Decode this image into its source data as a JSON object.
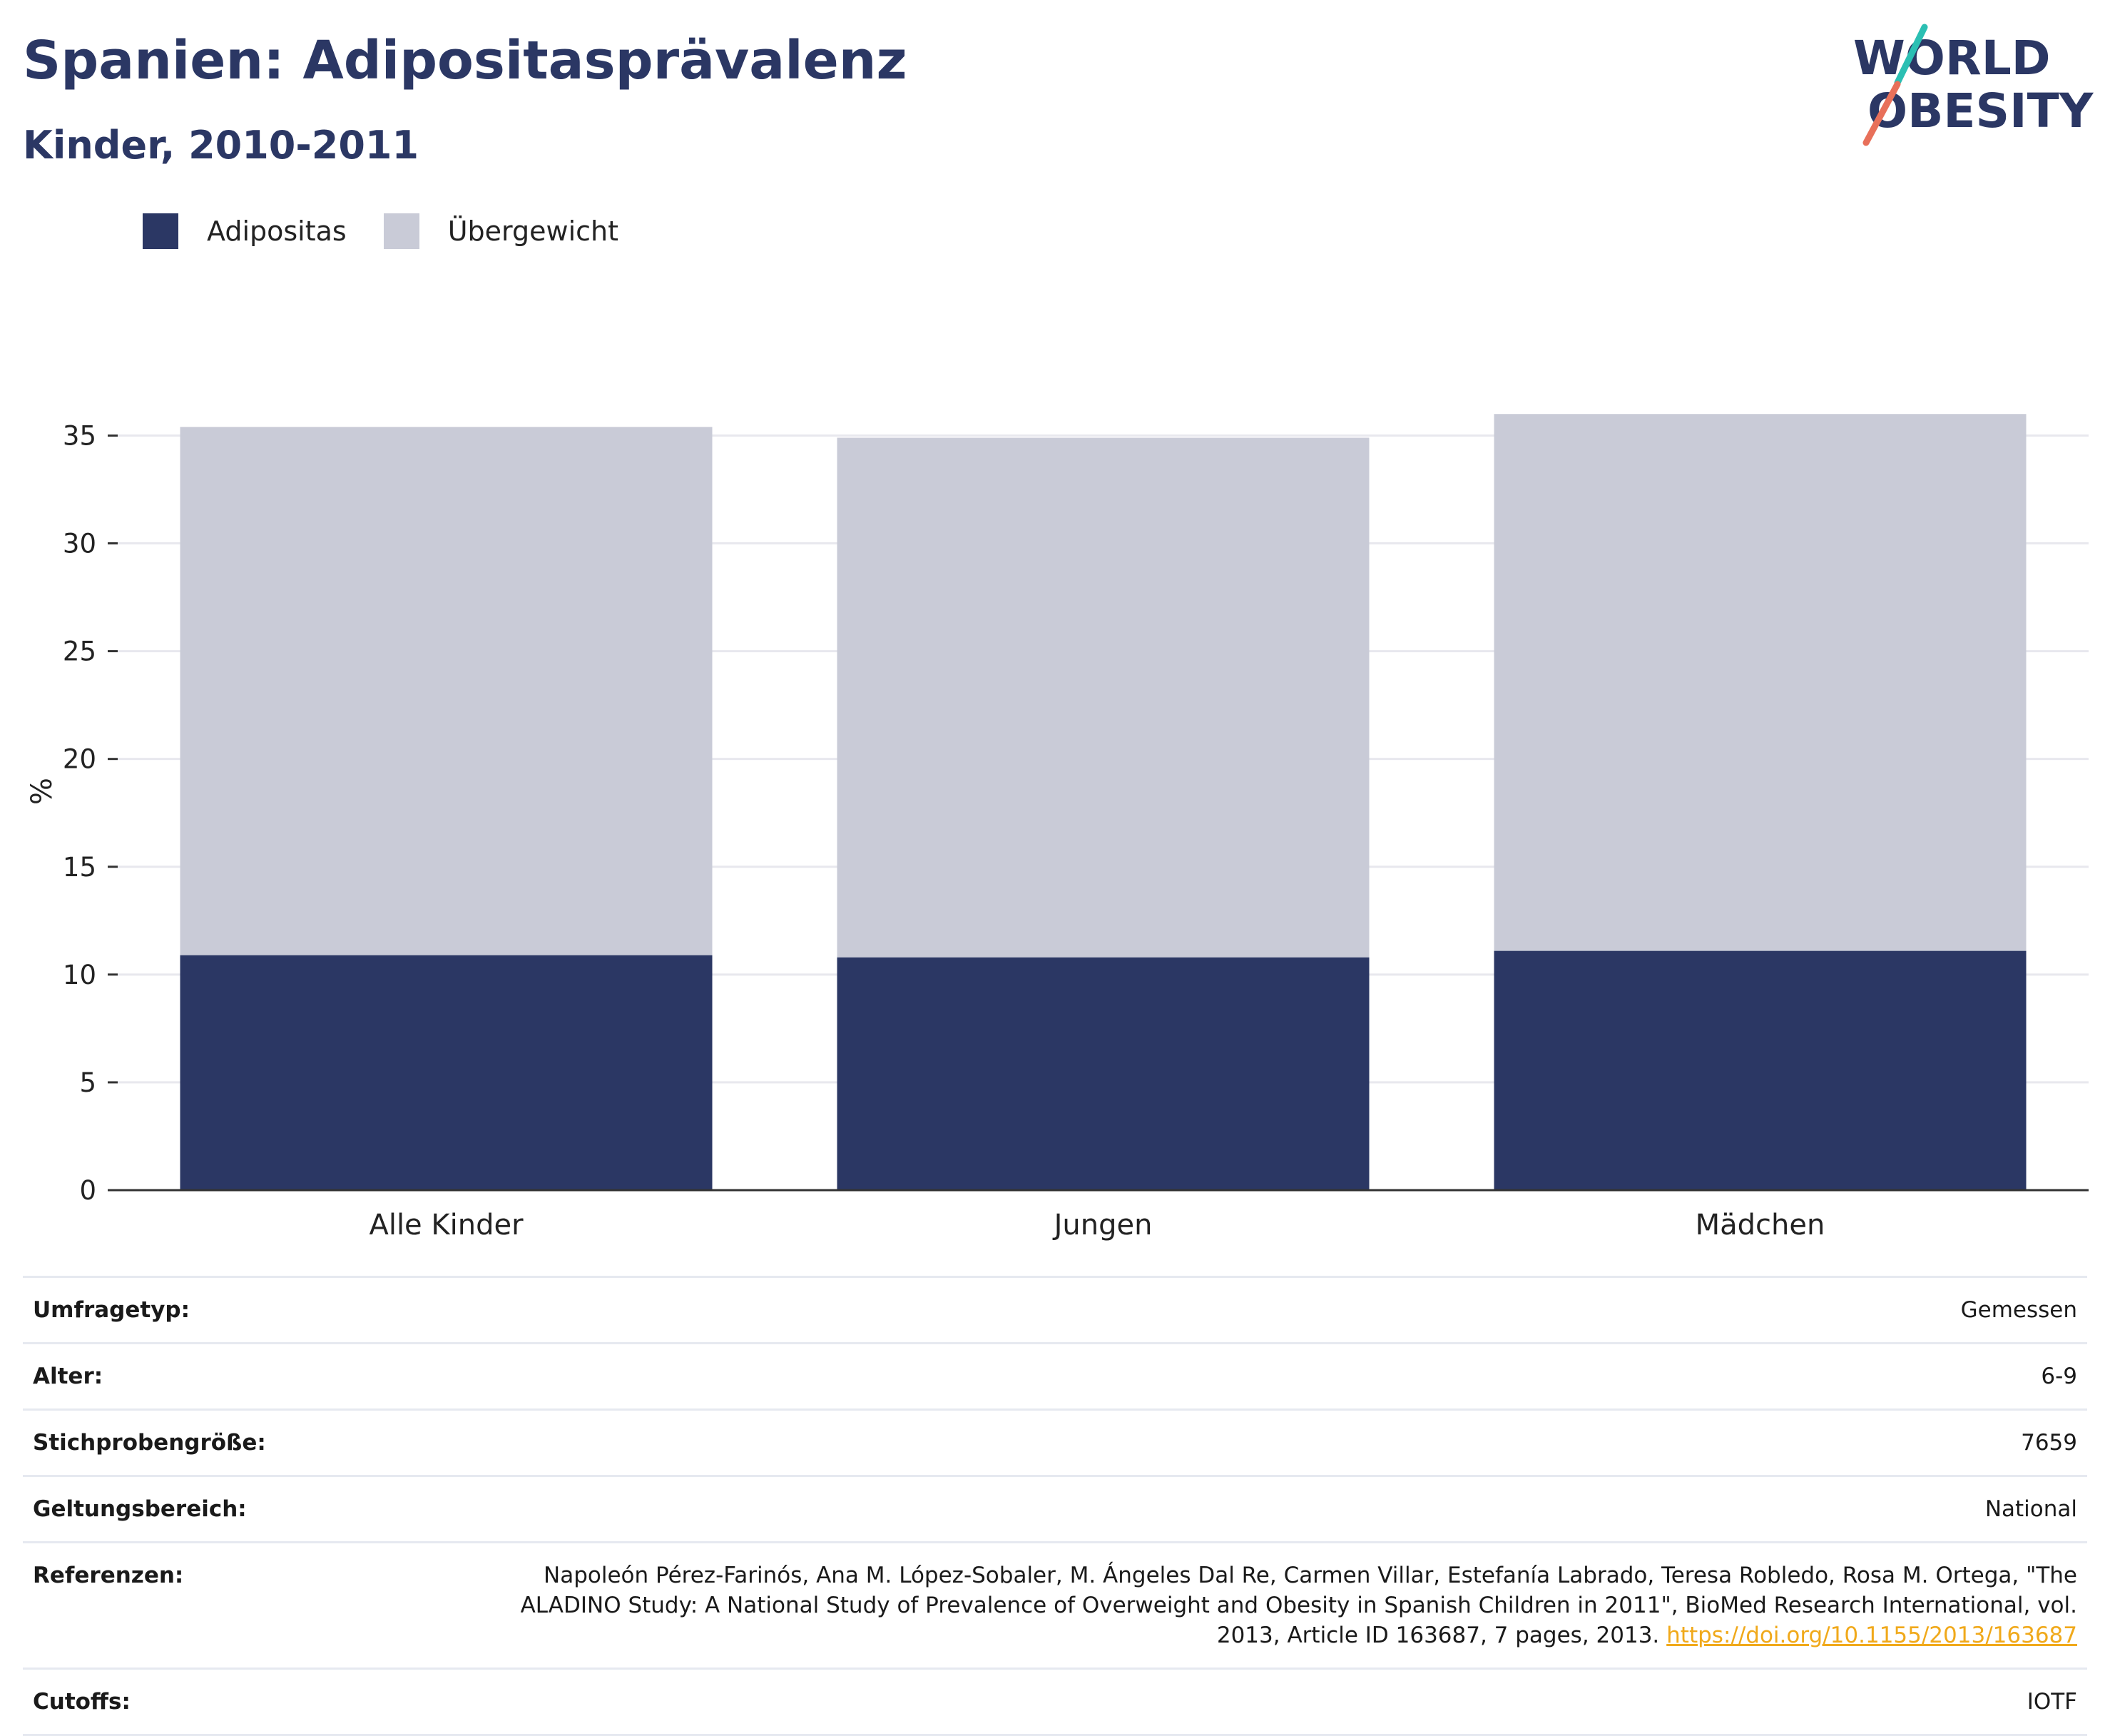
{
  "header": {
    "title": "Spanien: Adipositasprävalenz",
    "subtitle": "Kinder, 2010-2011"
  },
  "logo": {
    "line1": "WORLD",
    "line2": "OBESITY"
  },
  "colors": {
    "obesity": "#2b3764",
    "overweight": "#c9cbd7",
    "axis": "#333333",
    "grid": "#e8e8ee",
    "link": "#f0a91b"
  },
  "chart_data": {
    "type": "bar",
    "stacked": true,
    "categories": [
      "Alle Kinder",
      "Jungen",
      "Mädchen"
    ],
    "series": [
      {
        "name": "Adipositas",
        "color": "#2b3764",
        "values": [
          10.9,
          10.8,
          11.1
        ]
      },
      {
        "name": "Übergewicht",
        "color": "#c9cbd7",
        "values": [
          24.5,
          24.1,
          24.9
        ]
      }
    ],
    "ylabel": "%",
    "xlabel": "",
    "ylim": [
      0,
      37
    ],
    "yticks": [
      0,
      5,
      10,
      15,
      20,
      25,
      30,
      35
    ],
    "grid": true,
    "legend_position": "top-left"
  },
  "info": [
    {
      "key": "Umfragetyp:",
      "value": "Gemessen"
    },
    {
      "key": "Alter:",
      "value": "6-9"
    },
    {
      "key": "Stichprobengröße:",
      "value": "7659"
    },
    {
      "key": "Geltungsbereich:",
      "value": "National"
    },
    {
      "key": "Referenzen:",
      "value": "Napoleón Pérez-Farinós, Ana M. López-Sobaler, M. Ángeles Dal Re, Carmen Villar, Estefanía Labrado, Teresa Robledo, Rosa M. Ortega, \"The ALADINO Study: A National Study of Prevalence of Overweight and Obesity in Spanish Children in 2011\", BioMed Research International, vol. 2013, Article ID 163687, 7 pages, 2013.",
      "link": "https://doi.org/10.1155/2013/163687"
    },
    {
      "key": "Cutoffs:",
      "value": "IOTF"
    }
  ]
}
